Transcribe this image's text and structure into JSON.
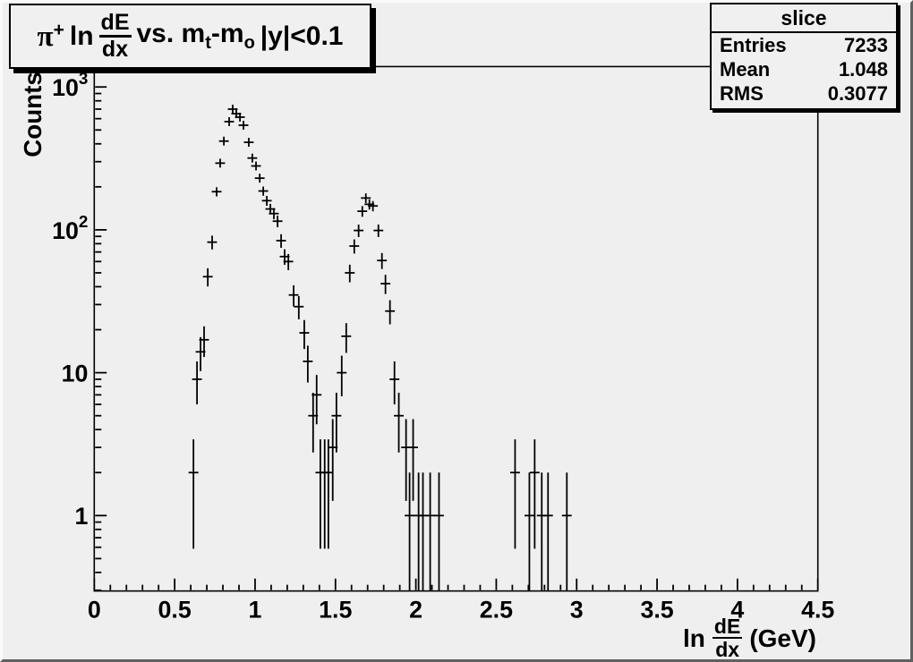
{
  "title_box": {
    "pi": "π",
    "pi_sup": "+",
    "ln": "ln",
    "frac_num": "dE",
    "frac_den": "dx",
    "vs": "vs. m",
    "sub_t": "t",
    "minus_m": "-m",
    "sub_o": "o",
    "tail": "|y|<0.1"
  },
  "stats_box": {
    "title": "slice",
    "rows": [
      {
        "label": "Entries",
        "value": "7233"
      },
      {
        "label": "Mean",
        "value": "1.048"
      },
      {
        "label": "RMS",
        "value": "0.3077"
      }
    ]
  },
  "x_axis_title": {
    "ln": "ln",
    "frac_num": "dE",
    "frac_den": "dx",
    "unit": "(GeV)"
  },
  "y_axis_title": {
    "text": "Counts"
  },
  "colors": {
    "background": "#efefef",
    "box_fill": "#f0f0f0",
    "axis": "#000000",
    "data": "#000000"
  },
  "chart_data": {
    "type": "scatter",
    "title": "π+ ln(dE/dx) vs. m_t-m_o |y|<0.1",
    "xlabel": "ln dE/dx (GeV)",
    "ylabel": "Counts",
    "xlim": [
      0,
      4.5
    ],
    "ylim": [
      0.3,
      1390
    ],
    "yscale": "log",
    "grid": false,
    "legend": "none",
    "x_major_ticks": [
      0,
      0.5,
      1,
      1.5,
      2,
      2.5,
      3,
      3.5,
      4,
      4.5
    ],
    "x_minor_tick_step": 0.1,
    "y_major_ticks": [
      1,
      10,
      100,
      1000
    ],
    "marker": "plus",
    "error_bars": "poisson sqrt(N), lower end clipped at axis minimum",
    "stats": {
      "name": "slice",
      "entries": 7233,
      "mean": 1.048,
      "rms": 0.3077
    },
    "points": [
      [
        0.617,
        2
      ],
      [
        0.639,
        9
      ],
      [
        0.661,
        14
      ],
      [
        0.683,
        17
      ],
      [
        0.706,
        47
      ],
      [
        0.733,
        82
      ],
      [
        0.761,
        185
      ],
      [
        0.783,
        293
      ],
      [
        0.806,
        418
      ],
      [
        0.839,
        572
      ],
      [
        0.861,
        700
      ],
      [
        0.883,
        650
      ],
      [
        0.906,
        615
      ],
      [
        0.928,
        540
      ],
      [
        0.961,
        410
      ],
      [
        0.983,
        318
      ],
      [
        1.006,
        280
      ],
      [
        1.029,
        230
      ],
      [
        1.051,
        187
      ],
      [
        1.073,
        160
      ],
      [
        1.095,
        140
      ],
      [
        1.117,
        130
      ],
      [
        1.14,
        115
      ],
      [
        1.162,
        84
      ],
      [
        1.184,
        65
      ],
      [
        1.207,
        60
      ],
      [
        1.24,
        35
      ],
      [
        1.272,
        29
      ],
      [
        1.306,
        19
      ],
      [
        1.328,
        12
      ],
      [
        1.361,
        5
      ],
      [
        1.383,
        7
      ],
      [
        1.406,
        2
      ],
      [
        1.433,
        2
      ],
      [
        1.456,
        2
      ],
      [
        1.483,
        3
      ],
      [
        1.506,
        5
      ],
      [
        1.539,
        10
      ],
      [
        1.567,
        18
      ],
      [
        1.589,
        50
      ],
      [
        1.617,
        77
      ],
      [
        1.644,
        99
      ],
      [
        1.667,
        135
      ],
      [
        1.689,
        167
      ],
      [
        1.711,
        151
      ],
      [
        1.733,
        147
      ],
      [
        1.767,
        99
      ],
      [
        1.789,
        61
      ],
      [
        1.811,
        42
      ],
      [
        1.839,
        27
      ],
      [
        1.867,
        9
      ],
      [
        1.894,
        5
      ],
      [
        1.939,
        3
      ],
      [
        1.961,
        1
      ],
      [
        1.983,
        3
      ],
      [
        2.017,
        1
      ],
      [
        2.044,
        1
      ],
      [
        2.089,
        1
      ],
      [
        2.144,
        1
      ],
      [
        2.617,
        2
      ],
      [
        2.706,
        1
      ],
      [
        2.739,
        2
      ],
      [
        2.783,
        1
      ],
      [
        2.822,
        1
      ],
      [
        2.939,
        1
      ]
    ]
  }
}
